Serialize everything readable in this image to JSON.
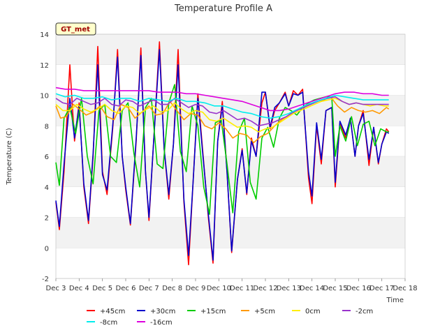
{
  "chart_data": {
    "type": "line",
    "title": "Temperature Profile A",
    "xlabel": "Time",
    "ylabel": "Temperature (C)",
    "badge": "GT_met",
    "xlim": [
      3,
      18
    ],
    "ylim": [
      -2,
      14
    ],
    "xticks": [
      3,
      4,
      5,
      6,
      7,
      8,
      9,
      10,
      11,
      12,
      13,
      14,
      15,
      16,
      17,
      18
    ],
    "xtick_labels": [
      "Dec 3",
      "Dec 4",
      "Dec 5",
      "Dec 6",
      "Dec 7",
      "Dec 8",
      "Dec 9",
      "Dec 10",
      "Dec 11",
      "Dec 12",
      "Dec 13",
      "Dec 14",
      "Dec 15",
      "Dec 16",
      "Dec 17",
      "Dec 18"
    ],
    "yticks": [
      -2,
      0,
      2,
      4,
      6,
      8,
      10,
      12,
      14
    ],
    "legend_position": "bottom",
    "grid": "horizontal bands",
    "series": [
      {
        "name": "+45cm",
        "color": "#ff0000",
        "x": [
          3.0,
          3.15,
          3.35,
          3.6,
          3.8,
          4.0,
          4.2,
          4.4,
          4.6,
          4.8,
          5.0,
          5.2,
          5.45,
          5.65,
          5.85,
          6.0,
          6.2,
          6.45,
          6.65,
          6.85,
          7.0,
          7.2,
          7.45,
          7.65,
          7.85,
          8.05,
          8.25,
          8.5,
          8.7,
          8.9,
          9.1,
          9.3,
          9.55,
          9.75,
          9.95,
          10.15,
          10.35,
          10.55,
          10.8,
          11.0,
          11.2,
          11.4,
          11.6,
          11.85,
          12.0,
          12.2,
          12.4,
          12.6,
          12.85,
          13.0,
          13.2,
          13.4,
          13.6,
          13.85,
          14.0,
          14.2,
          14.4,
          14.6,
          14.85,
          15.0,
          15.2,
          15.45,
          15.65,
          15.85,
          16.0,
          16.2,
          16.45,
          16.65,
          16.85,
          17.0,
          17.2,
          17.3
        ],
        "y": [
          3.0,
          1.2,
          5.0,
          12.0,
          7.0,
          9.5,
          4.0,
          1.6,
          6.0,
          13.2,
          5.0,
          3.5,
          8.0,
          13.0,
          6.0,
          3.8,
          1.5,
          7.0,
          13.1,
          5.0,
          1.8,
          7.0,
          13.5,
          6.5,
          3.2,
          6.8,
          13.0,
          3.0,
          -1.1,
          4.5,
          10.1,
          6.5,
          2.0,
          -1.0,
          7.0,
          9.6,
          5.0,
          -0.3,
          4.5,
          6.5,
          3.5,
          7.2,
          6.0,
          9.5,
          10.2,
          7.8,
          9.0,
          9.5,
          10.2,
          9.3,
          10.3,
          10.0,
          10.4,
          4.6,
          2.9,
          8.0,
          5.5,
          9.0,
          9.2,
          4.0,
          8.2,
          7.2,
          8.5,
          6.0,
          8.0,
          9.0,
          5.4,
          7.9,
          5.5,
          6.8,
          7.8,
          7.6
        ]
      },
      {
        "name": "+30cm",
        "color": "#0000cc",
        "x": [
          3.0,
          3.15,
          3.35,
          3.6,
          3.8,
          4.0,
          4.2,
          4.4,
          4.6,
          4.8,
          5.0,
          5.2,
          5.45,
          5.65,
          5.85,
          6.0,
          6.2,
          6.45,
          6.65,
          6.85,
          7.0,
          7.2,
          7.45,
          7.65,
          7.85,
          8.05,
          8.25,
          8.5,
          8.7,
          8.9,
          9.1,
          9.3,
          9.55,
          9.75,
          9.95,
          10.15,
          10.35,
          10.55,
          10.8,
          11.0,
          11.2,
          11.4,
          11.6,
          11.85,
          12.0,
          12.2,
          12.4,
          12.6,
          12.85,
          13.0,
          13.2,
          13.4,
          13.6,
          13.85,
          14.0,
          14.2,
          14.4,
          14.6,
          14.85,
          15.0,
          15.2,
          15.45,
          15.65,
          15.85,
          16.0,
          16.2,
          16.45,
          16.65,
          16.85,
          17.0,
          17.2,
          17.3
        ],
        "y": [
          3.1,
          1.4,
          5.5,
          9.8,
          7.2,
          9.3,
          4.2,
          1.8,
          6.2,
          12.0,
          4.8,
          3.8,
          8.2,
          12.5,
          6.0,
          4.0,
          1.6,
          7.2,
          12.6,
          5.0,
          2.0,
          7.0,
          13.0,
          6.5,
          3.5,
          6.8,
          12.0,
          3.2,
          -0.5,
          4.5,
          9.8,
          6.3,
          2.2,
          -0.8,
          7.0,
          9.3,
          5.0,
          -0.2,
          4.5,
          6.4,
          3.6,
          7.0,
          6.0,
          10.2,
          10.2,
          7.9,
          9.2,
          9.5,
          10.1,
          9.3,
          10.1,
          10.0,
          10.2,
          5.0,
          3.4,
          8.2,
          5.8,
          9.0,
          9.2,
          4.3,
          8.3,
          7.4,
          8.5,
          6.0,
          8.0,
          8.8,
          5.8,
          7.9,
          5.6,
          6.8,
          7.6,
          7.5
        ]
      },
      {
        "name": "+15cm",
        "color": "#00cc00",
        "x": [
          3.0,
          3.15,
          3.35,
          3.6,
          3.85,
          4.1,
          4.35,
          4.6,
          4.85,
          5.1,
          5.35,
          5.6,
          5.85,
          6.1,
          6.35,
          6.6,
          6.85,
          7.1,
          7.35,
          7.6,
          7.85,
          8.1,
          8.35,
          8.6,
          8.85,
          9.1,
          9.35,
          9.6,
          9.85,
          10.1,
          10.35,
          10.6,
          10.85,
          11.1,
          11.35,
          11.6,
          11.85,
          12.1,
          12.35,
          12.6,
          12.85,
          13.1,
          13.35,
          13.6,
          13.85,
          14.1,
          14.35,
          14.6,
          14.85,
          15.0,
          15.2,
          15.45,
          15.7,
          15.95,
          16.2,
          16.45,
          16.7,
          16.95,
          17.2,
          17.3
        ],
        "y": [
          5.6,
          4.1,
          8.5,
          9.2,
          7.5,
          9.8,
          6.0,
          4.2,
          9.0,
          9.4,
          6.0,
          5.6,
          9.0,
          9.5,
          6.2,
          4.0,
          9.2,
          9.8,
          5.5,
          5.2,
          9.5,
          10.7,
          6.3,
          5.0,
          9.3,
          8.0,
          4.0,
          2.2,
          8.2,
          8.4,
          5.5,
          2.3,
          7.6,
          8.5,
          4.3,
          3.2,
          7.2,
          7.9,
          6.6,
          8.5,
          9.2,
          9.0,
          8.7,
          9.2,
          9.5,
          9.7,
          9.8,
          9.9,
          9.9,
          6.0,
          8.0,
          7.0,
          8.6,
          6.7,
          8.1,
          8.3,
          6.7,
          7.8,
          7.6,
          7.6
        ]
      },
      {
        "name": "+5cm",
        "color": "#ff9900",
        "x": [
          3.0,
          3.2,
          3.45,
          3.75,
          4.0,
          4.3,
          4.6,
          4.9,
          5.2,
          5.5,
          5.8,
          6.1,
          6.4,
          6.7,
          7.0,
          7.3,
          7.6,
          7.9,
          8.2,
          8.5,
          8.8,
          9.1,
          9.4,
          9.7,
          10.0,
          10.3,
          10.6,
          10.9,
          11.2,
          11.5,
          11.8,
          12.1,
          12.4,
          12.7,
          13.0,
          13.3,
          13.6,
          13.9,
          14.2,
          14.5,
          14.8,
          15.1,
          15.4,
          15.7,
          16.0,
          16.3,
          16.6,
          16.9,
          17.2,
          17.3
        ],
        "y": [
          9.3,
          8.5,
          8.6,
          9.4,
          9.1,
          8.7,
          8.9,
          9.3,
          8.6,
          8.4,
          9.4,
          9.2,
          8.5,
          8.9,
          9.3,
          8.7,
          8.8,
          9.6,
          9.0,
          8.4,
          8.8,
          8.7,
          8.0,
          7.8,
          8.2,
          7.8,
          7.2,
          7.5,
          7.4,
          6.9,
          7.3,
          7.5,
          8.0,
          8.4,
          8.7,
          9.0,
          9.2,
          9.4,
          9.6,
          9.7,
          9.9,
          9.3,
          8.9,
          9.2,
          9.0,
          8.9,
          9.0,
          8.8,
          9.2,
          9.1
        ]
      },
      {
        "name": "0cm",
        "color": "#ffee00",
        "x": [
          3.0,
          3.3,
          3.6,
          3.9,
          4.2,
          4.5,
          4.8,
          5.1,
          5.4,
          5.7,
          6.0,
          6.3,
          6.6,
          6.9,
          7.2,
          7.5,
          7.8,
          8.1,
          8.4,
          8.7,
          9.0,
          9.3,
          9.6,
          9.9,
          10.2,
          10.5,
          10.8,
          11.1,
          11.4,
          11.7,
          12.0,
          12.3,
          12.6,
          12.9,
          13.2,
          13.5,
          13.8,
          14.1,
          14.4,
          14.7,
          15.0,
          15.3,
          15.6,
          15.9,
          16.2,
          16.5,
          16.8,
          17.1,
          17.3
        ],
        "y": [
          9.4,
          9.0,
          9.0,
          9.4,
          9.1,
          8.9,
          9.1,
          9.4,
          9.0,
          8.8,
          9.3,
          9.2,
          8.8,
          9.1,
          9.3,
          8.9,
          9.0,
          9.5,
          9.1,
          8.8,
          9.0,
          8.9,
          8.4,
          8.3,
          8.5,
          8.2,
          7.9,
          8.0,
          7.9,
          7.6,
          7.8,
          7.9,
          8.2,
          8.5,
          8.8,
          9.0,
          9.2,
          9.4,
          9.6,
          9.7,
          9.8,
          9.6,
          9.4,
          9.5,
          9.4,
          9.3,
          9.4,
          9.3,
          9.3
        ]
      },
      {
        "name": "-2cm",
        "color": "#9933cc",
        "x": [
          3.0,
          3.3,
          3.6,
          3.9,
          4.2,
          4.5,
          4.8,
          5.1,
          5.4,
          5.7,
          6.0,
          6.3,
          6.6,
          6.9,
          7.2,
          7.5,
          7.8,
          8.1,
          8.4,
          8.7,
          9.0,
          9.3,
          9.6,
          9.9,
          10.2,
          10.5,
          10.8,
          11.1,
          11.4,
          11.7,
          12.0,
          12.3,
          12.6,
          12.9,
          13.2,
          13.5,
          13.8,
          14.1,
          14.4,
          14.7,
          15.0,
          15.3,
          15.6,
          15.9,
          16.2,
          16.5,
          16.8,
          17.1,
          17.3
        ],
        "y": [
          9.8,
          9.5,
          9.4,
          9.8,
          9.6,
          9.4,
          9.5,
          9.8,
          9.4,
          9.3,
          9.7,
          9.6,
          9.3,
          9.5,
          9.7,
          9.4,
          9.4,
          9.8,
          9.5,
          9.2,
          9.4,
          9.3,
          8.9,
          8.8,
          9.0,
          8.7,
          8.4,
          8.5,
          8.3,
          8.0,
          8.1,
          8.2,
          8.4,
          8.6,
          8.9,
          9.1,
          9.3,
          9.5,
          9.7,
          9.8,
          9.9,
          9.6,
          9.4,
          9.5,
          9.4,
          9.4,
          9.4,
          9.4,
          9.4
        ]
      },
      {
        "name": "-8cm",
        "color": "#00eeee",
        "x": [
          3.0,
          3.4,
          3.8,
          4.2,
          4.6,
          5.0,
          5.4,
          5.8,
          6.2,
          6.6,
          7.0,
          7.4,
          7.8,
          8.2,
          8.6,
          9.0,
          9.4,
          9.8,
          10.2,
          10.6,
          11.0,
          11.4,
          11.8,
          12.2,
          12.6,
          13.0,
          13.4,
          13.8,
          14.2,
          14.6,
          15.0,
          15.4,
          15.8,
          16.2,
          16.6,
          17.0,
          17.3
        ],
        "y": [
          10.1,
          9.9,
          10.0,
          9.8,
          9.8,
          9.9,
          9.7,
          9.8,
          9.8,
          9.6,
          9.8,
          9.7,
          9.6,
          9.8,
          9.6,
          9.6,
          9.5,
          9.3,
          9.3,
          9.1,
          8.9,
          8.8,
          8.6,
          8.5,
          8.6,
          8.8,
          9.1,
          9.4,
          9.6,
          9.8,
          10.0,
          9.9,
          9.8,
          9.7,
          9.7,
          9.7,
          9.7
        ]
      },
      {
        "name": "-16cm",
        "color": "#dd00dd",
        "x": [
          3.0,
          3.4,
          3.8,
          4.2,
          4.6,
          5.0,
          5.4,
          5.8,
          6.2,
          6.6,
          7.0,
          7.4,
          7.8,
          8.2,
          8.6,
          9.0,
          9.4,
          9.8,
          10.2,
          10.6,
          11.0,
          11.4,
          11.8,
          12.2,
          12.6,
          13.0,
          13.4,
          13.8,
          14.2,
          14.6,
          15.0,
          15.4,
          15.8,
          16.2,
          16.6,
          17.0,
          17.3
        ],
        "y": [
          10.5,
          10.4,
          10.4,
          10.3,
          10.3,
          10.3,
          10.3,
          10.3,
          10.3,
          10.3,
          10.3,
          10.2,
          10.2,
          10.2,
          10.1,
          10.1,
          10.0,
          9.9,
          9.8,
          9.7,
          9.6,
          9.4,
          9.2,
          9.0,
          9.0,
          9.1,
          9.3,
          9.5,
          9.7,
          9.9,
          10.1,
          10.2,
          10.2,
          10.1,
          10.1,
          10.0,
          10.0
        ]
      }
    ]
  }
}
